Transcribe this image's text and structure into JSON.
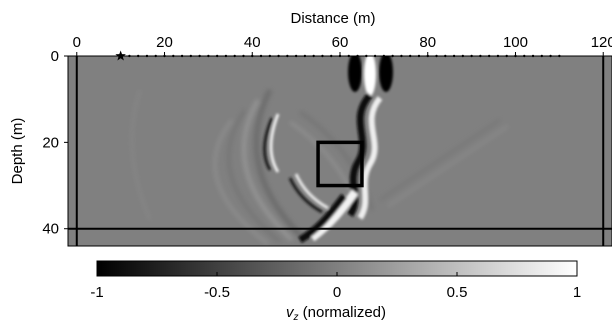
{
  "chart_data": {
    "type": "heatmap",
    "xlabel": "Distance (m)",
    "ylabel": "Depth (m)",
    "x_ticks": [
      0,
      20,
      40,
      60,
      80,
      100,
      120
    ],
    "y_ticks": [
      0,
      20,
      40
    ],
    "xlim": [
      -2,
      122
    ],
    "ylim": [
      44,
      0
    ],
    "source": {
      "marker": "star",
      "x": 10,
      "depth": 0
    },
    "receivers": {
      "x_start": 12,
      "x_end": 110,
      "depth": 0,
      "count": 50
    },
    "pml_boundaries": {
      "x": [
        0,
        120
      ],
      "depth": 40
    },
    "target_box": {
      "x": [
        55,
        65
      ],
      "depth": [
        20,
        30
      ]
    },
    "colorbar": {
      "label_main": "v",
      "label_sub": "z",
      "label_suffix": " (normalized)",
      "ticks": [
        -1,
        -0.5,
        0,
        0.5,
        1
      ],
      "tick_labels": [
        "-1",
        "-0.5",
        "0",
        "0.5",
        "1"
      ],
      "range": [
        -1,
        1
      ],
      "colormap": "gray"
    },
    "colors": {
      "background": "#808080",
      "box": "#000000",
      "boundary": "#000000"
    }
  }
}
